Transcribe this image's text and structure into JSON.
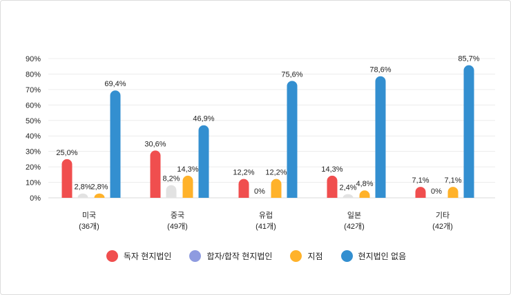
{
  "chart_data": {
    "type": "bar",
    "categories": [
      "미국",
      "중국",
      "유럽",
      "일본",
      "기타"
    ],
    "category_counts": [
      "(36개)",
      "(49개)",
      "(41개)",
      "(42개)",
      "(42개)"
    ],
    "series": [
      {
        "name": "독자 현지법인",
        "values": [
          25.0,
          30.6,
          12.2,
          14.3,
          7.1
        ],
        "labels": [
          "25,0%",
          "30,6%",
          "12,2%",
          "14,3%",
          "7,1%"
        ],
        "color": "#f04e4e",
        "legend_color": "#f04e4e"
      },
      {
        "name": "합자/합작 현지법인",
        "values": [
          2.8,
          8.2,
          0,
          2.4,
          0
        ],
        "labels": [
          "2,8%",
          "8,2%",
          "0%",
          "2,4%",
          "0%"
        ],
        "color": "#e2e2e2",
        "legend_color": "#8e9be0"
      },
      {
        "name": "지점",
        "values": [
          2.8,
          14.3,
          12.2,
          4.8,
          7.1
        ],
        "labels": [
          "2,8%",
          "14,3%",
          "12,2%",
          "4,8%",
          "7,1%"
        ],
        "color": "#ffb22a",
        "legend_color": "#ffb22a"
      },
      {
        "name": "현지법인 없음",
        "values": [
          69.4,
          46.9,
          75.6,
          78.6,
          85.7
        ],
        "labels": [
          "69,4%",
          "46,9%",
          "75,6%",
          "78,6%",
          "85,7%"
        ],
        "color": "#338fd0",
        "legend_color": "#338fd0"
      }
    ],
    "yticks": [
      "0%",
      "10%",
      "20%",
      "30%",
      "40%",
      "50%",
      "60%",
      "70%",
      "80%",
      "90%"
    ],
    "ylim": [
      0,
      90
    ],
    "grid": true,
    "legend_position": "bottom"
  }
}
